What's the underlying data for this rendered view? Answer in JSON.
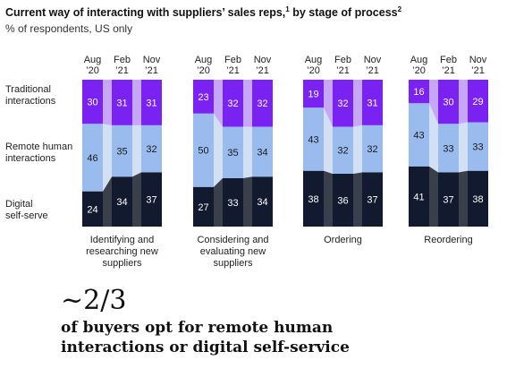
{
  "header": {
    "title": "Current way of interacting with suppliers’ sales reps,",
    "title_sup1": "1",
    "title_rest": " by stage of process",
    "title_sup2": "2",
    "subtitle": "% of respondents, US only"
  },
  "row_labels": {
    "traditional": [
      "Traditional",
      "interactions"
    ],
    "remote": [
      "Remote human",
      "interactions"
    ],
    "digital": [
      "Digital",
      "self-serve"
    ]
  },
  "callout": {
    "figure": "~2/3",
    "text_line1": "of buyers opt for remote human",
    "text_line2": "interactions or digital self-service"
  },
  "colors": {
    "digital": "#111a2e",
    "remote": "#99bbee",
    "traditional": "#7a22f2",
    "connector": "#c9ced8"
  },
  "chart_data": {
    "type": "bar",
    "stacked": true,
    "ylim": [
      0,
      100
    ],
    "periods": [
      [
        "Aug",
        "’20"
      ],
      [
        "Feb",
        "’21"
      ],
      [
        "Nov",
        "’21"
      ]
    ],
    "stages": [
      {
        "label": [
          "Identifying and",
          "researching new",
          "suppliers"
        ],
        "series": {
          "digital": [
            24,
            34,
            37
          ],
          "remote": [
            46,
            35,
            32
          ],
          "traditional": [
            30,
            31,
            31
          ]
        }
      },
      {
        "label": [
          "Considering and",
          "evaluating new",
          "suppliers"
        ],
        "series": {
          "digital": [
            27,
            33,
            34
          ],
          "remote": [
            50,
            35,
            34
          ],
          "traditional": [
            23,
            32,
            32
          ]
        }
      },
      {
        "label": [
          "Ordering"
        ],
        "series": {
          "digital": [
            38,
            36,
            37
          ],
          "remote": [
            43,
            32,
            32
          ],
          "traditional": [
            19,
            32,
            31
          ]
        }
      },
      {
        "label": [
          "Reordering"
        ],
        "series": {
          "digital": [
            41,
            37,
            38
          ],
          "remote": [
            43,
            33,
            33
          ],
          "traditional": [
            16,
            30,
            29
          ]
        }
      }
    ]
  }
}
